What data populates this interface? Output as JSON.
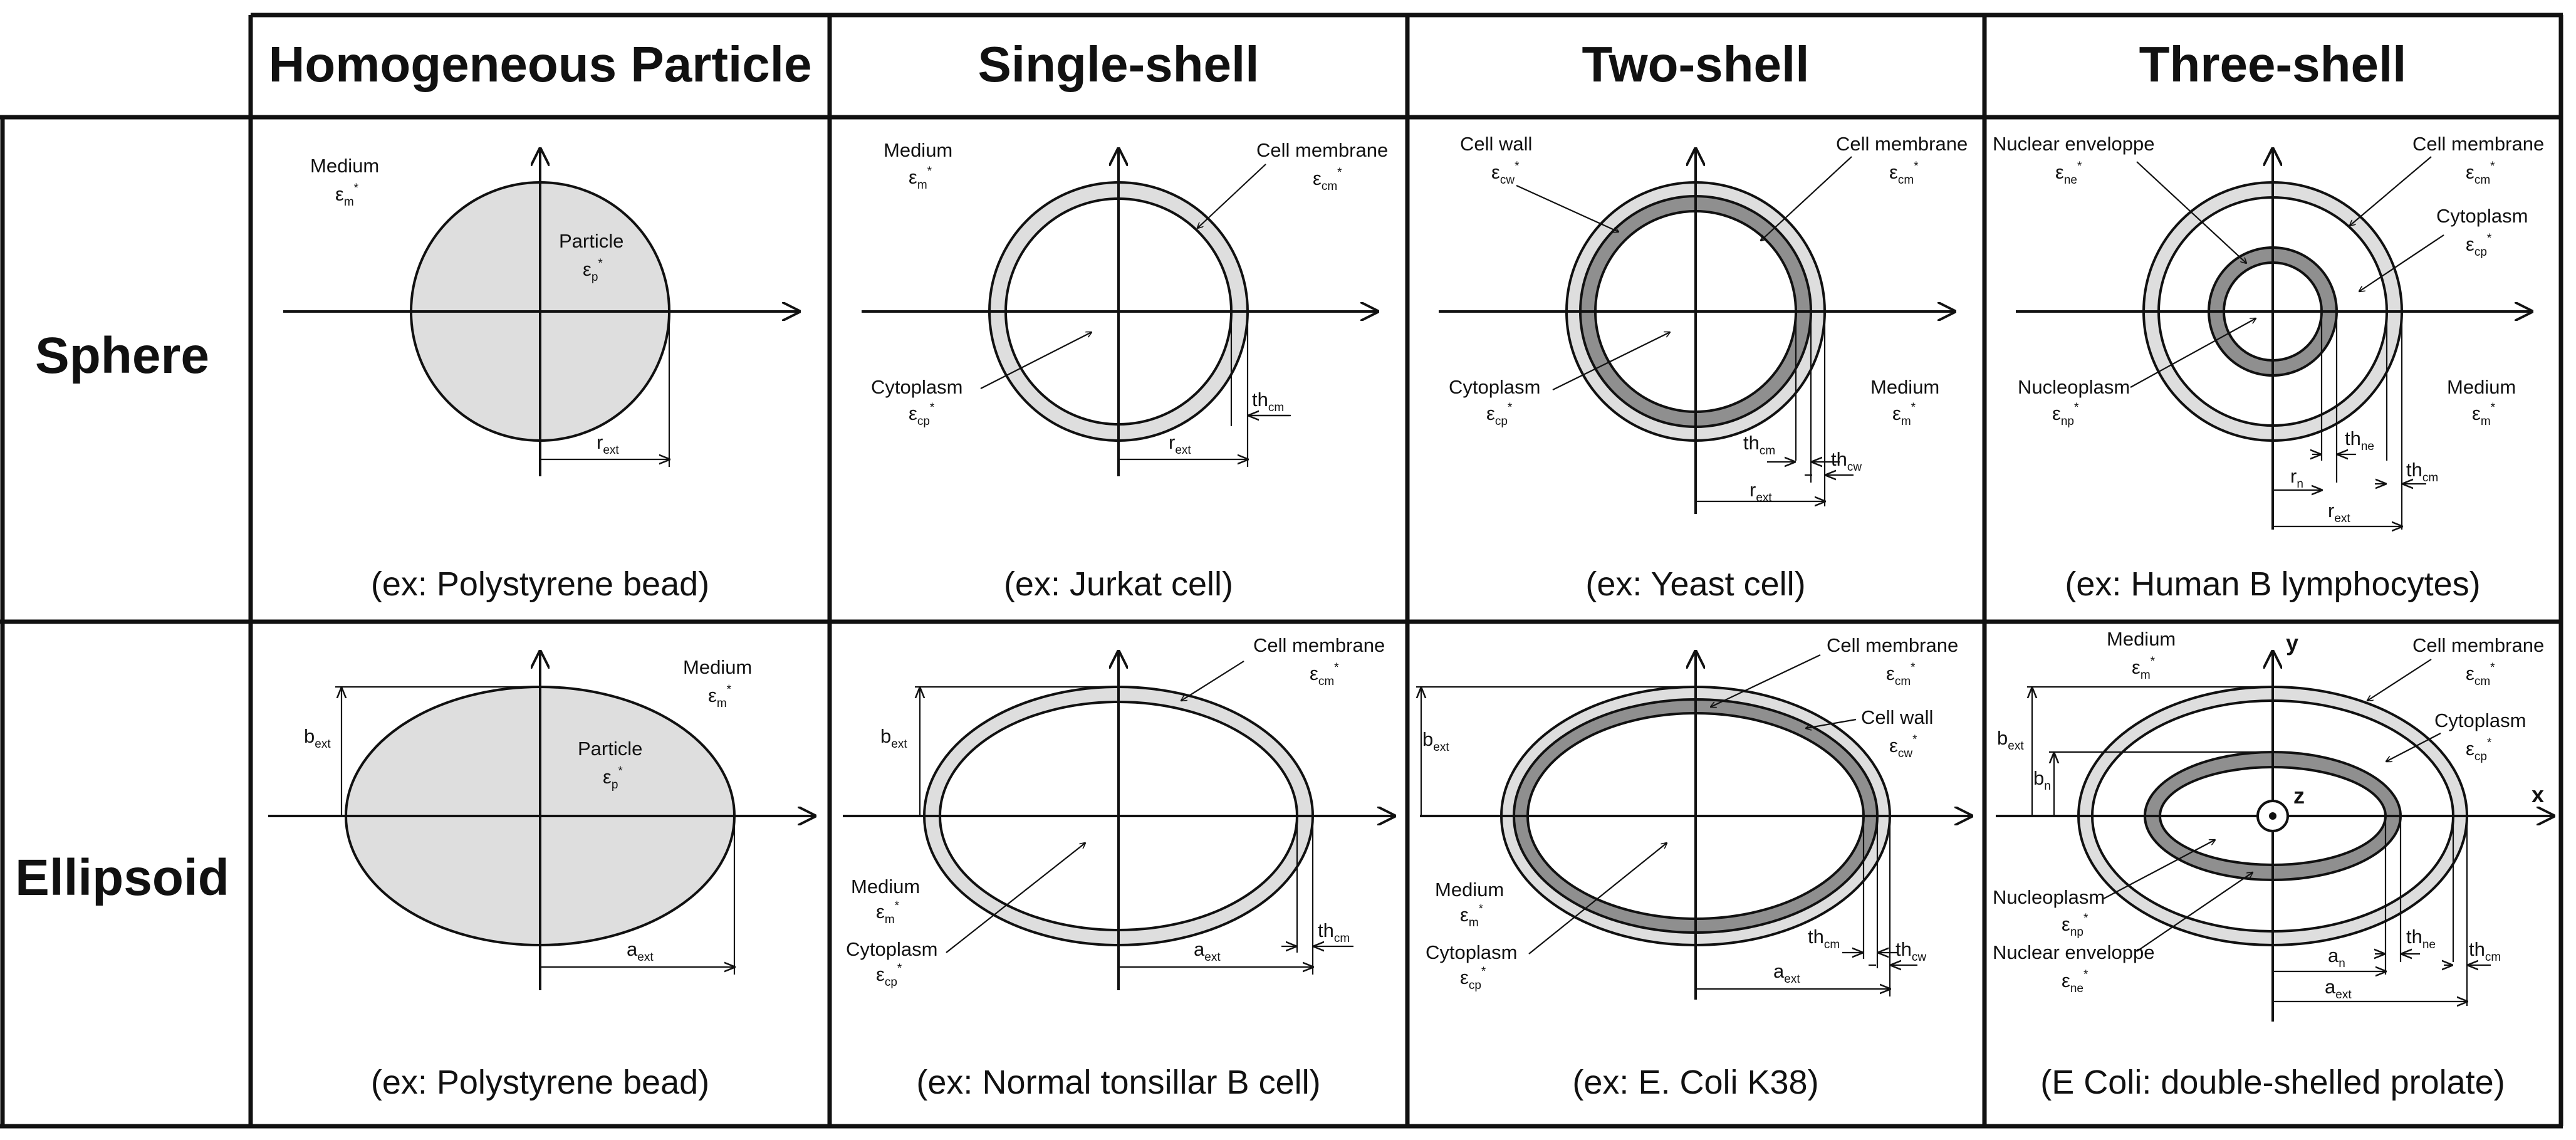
{
  "columns": [
    "Homogeneous Particle",
    "Single-shell",
    "Two-shell",
    "Three-shell"
  ],
  "rows": [
    "Sphere",
    "Ellipsoid"
  ],
  "colors": {
    "outer_shell": "#dedede",
    "inner_shell": "#8f8f8f",
    "particle": "#dedede",
    "line": "#111111"
  },
  "captions": {
    "sphere_homogeneous": "(ex: Polystyrene bead)",
    "sphere_single": "(ex: Jurkat cell)",
    "sphere_two": "(ex: Yeast cell)",
    "sphere_three": "(ex: Human B lymphocytes)",
    "ellipsoid_homogeneous": "(ex: Polystyrene bead)",
    "ellipsoid_single": "(ex: Normal tonsillar B cell)",
    "ellipsoid_two": "(ex: E. Coli K38)",
    "ellipsoid_three": "(E Coli: double-shelled prolate)"
  },
  "labels": {
    "medium": "Medium",
    "particle": "Particle",
    "cell_membrane": "Cell membrane",
    "cell_wall": "Cell wall",
    "cytoplasm": "Cytoplasm",
    "nucleoplasm": "Nucleoplasm",
    "nuclear_envelope": "Nuclear enveloppe",
    "eps": "ε",
    "star": "*",
    "r": "r",
    "a": "a",
    "b": "b",
    "th": "th",
    "sub_m": "m",
    "sub_p": "p",
    "sub_cm": "cm",
    "sub_cp": "cp",
    "sub_cw": "cw",
    "sub_ne": "ne",
    "sub_np": "np",
    "sub_ext": "ext",
    "sub_n": "n",
    "axis_x": "x",
    "axis_y": "y",
    "axis_z": "z"
  }
}
